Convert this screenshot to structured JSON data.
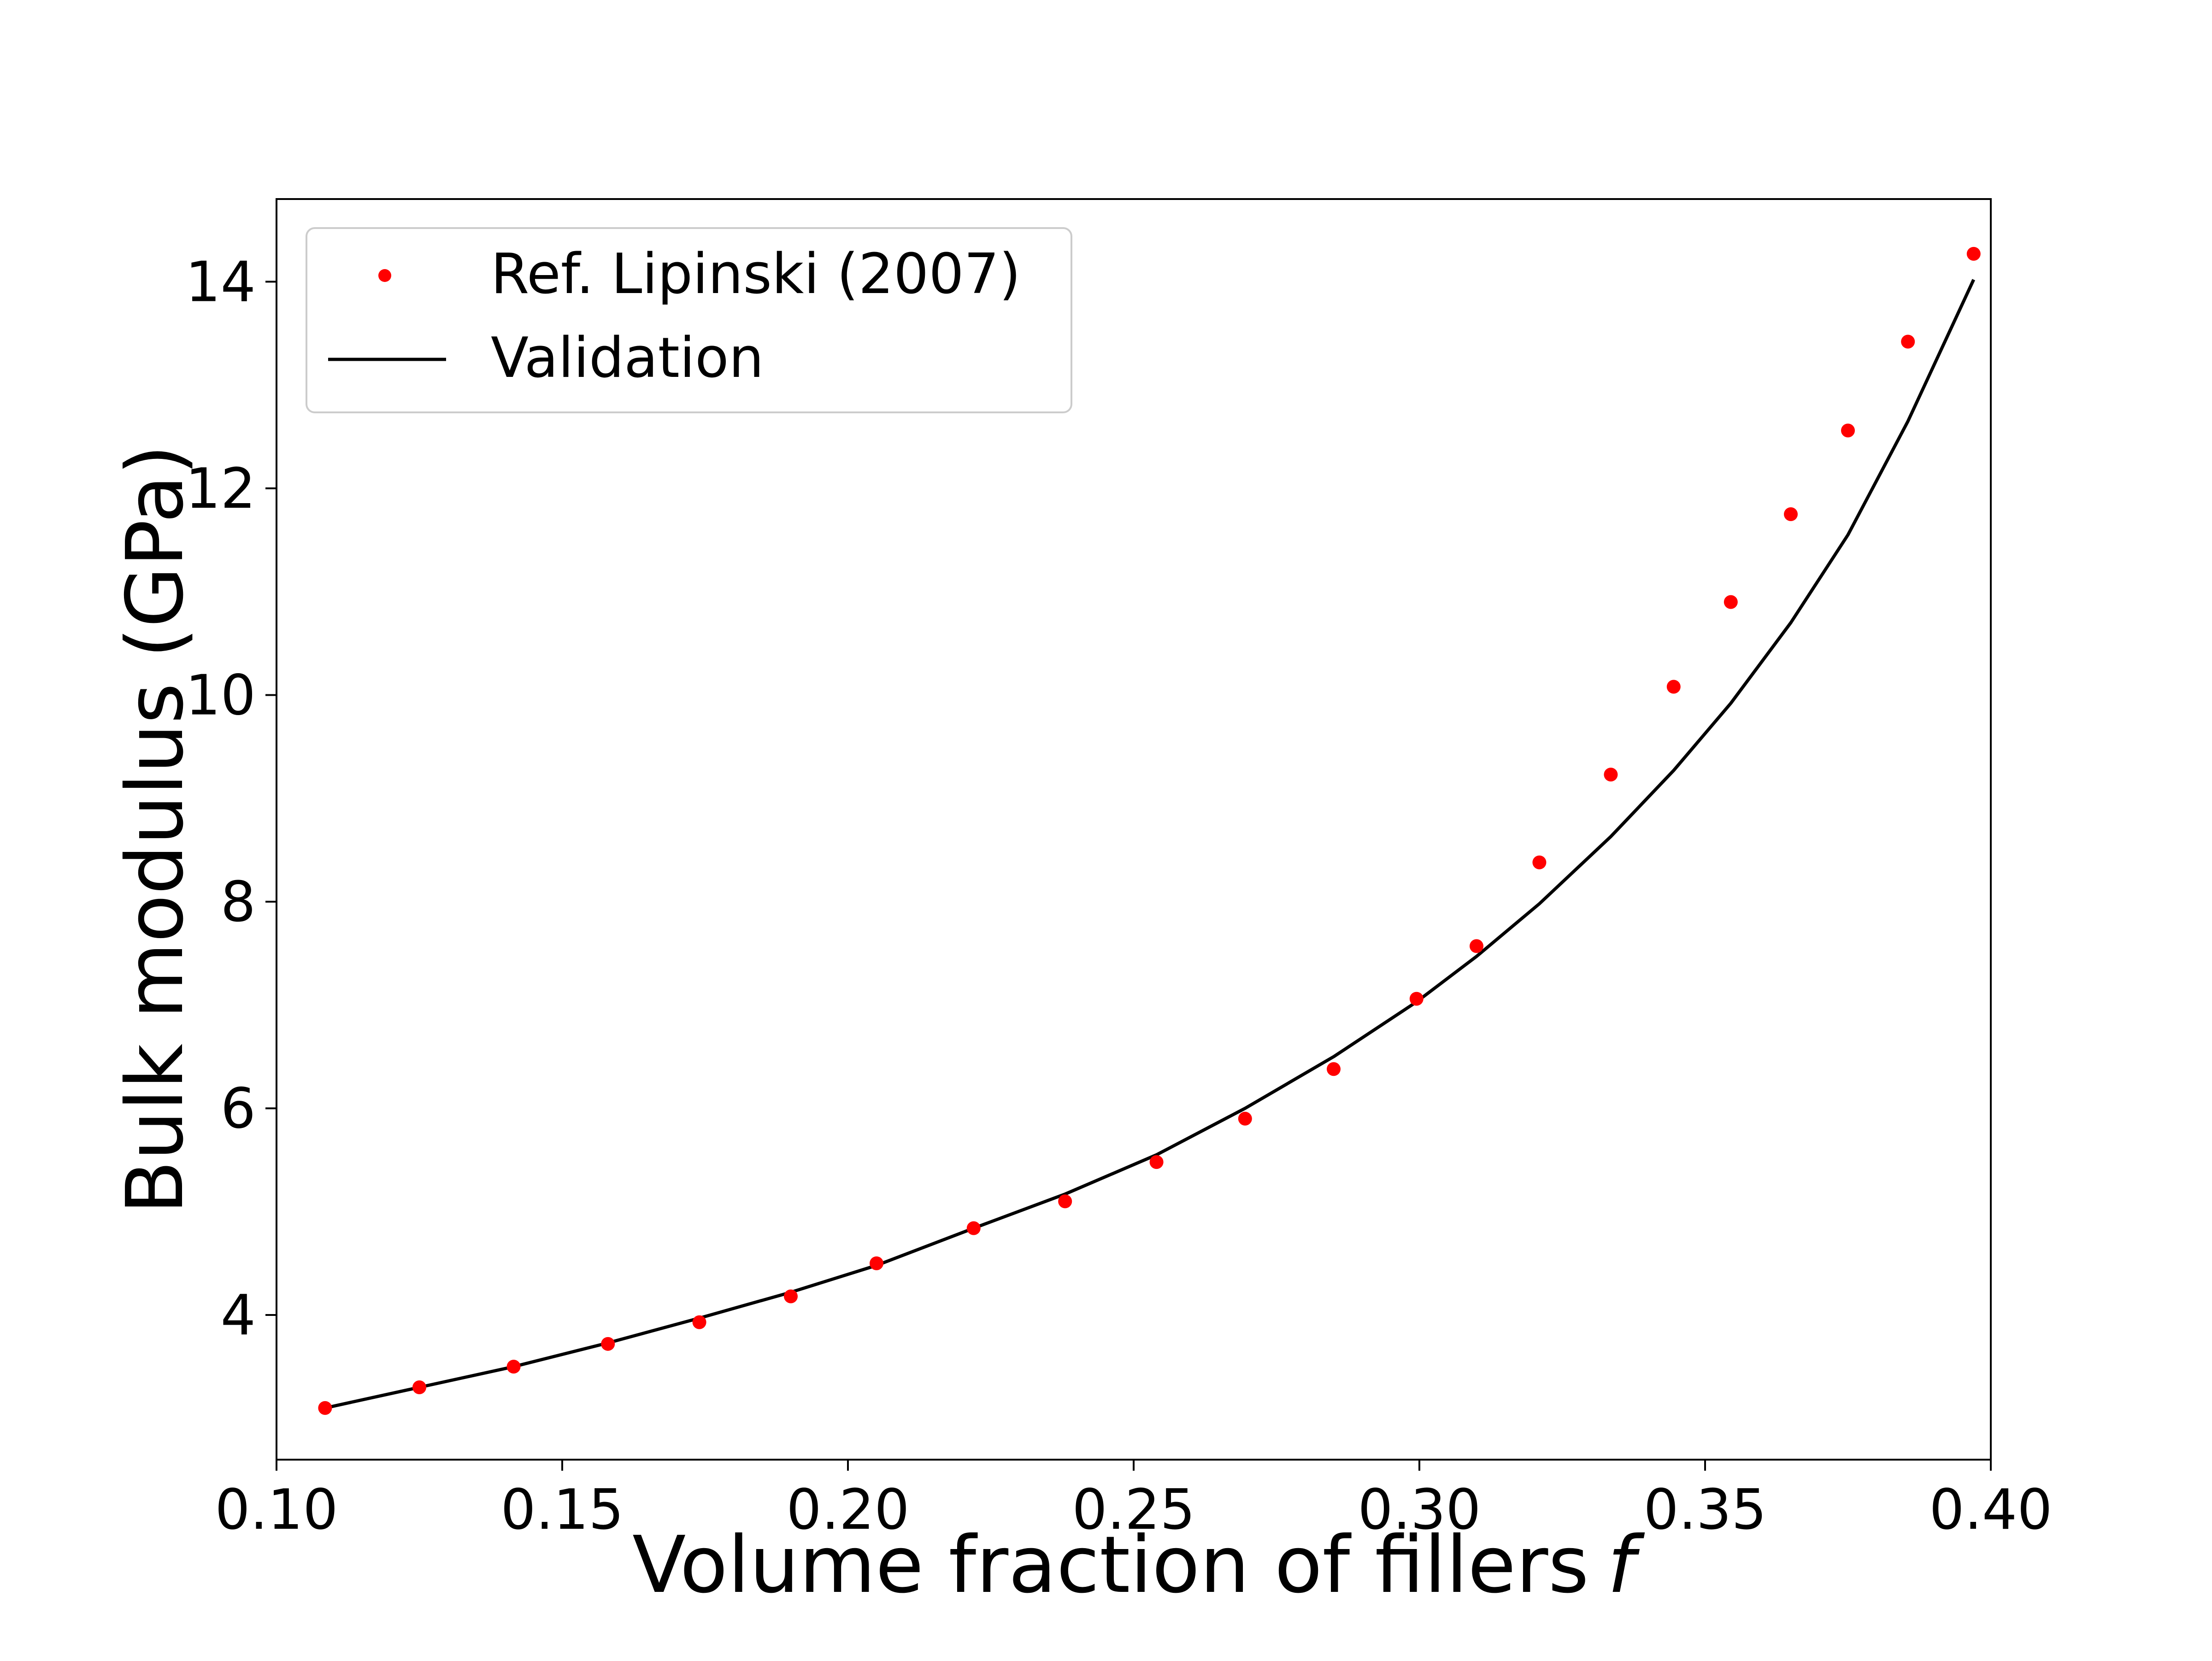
{
  "chart_data": {
    "type": "line",
    "title": "",
    "xlabel": "Volume fraction of fillers",
    "xlabel_italic": "f",
    "ylabel": "Bulk modulus (GPa)",
    "xlim": [
      0.1,
      0.4
    ],
    "ylim": [
      2.6,
      14.8
    ],
    "xticks": [
      "0.10",
      "0.15",
      "0.20",
      "0.25",
      "0.30",
      "0.35",
      "0.40"
    ],
    "yticks": [
      "4",
      "6",
      "8",
      "10",
      "12",
      "14"
    ],
    "grid": false,
    "legend_position": "top-left",
    "series": [
      {
        "name": "Ref. Lipinski (2007)",
        "style": "markers",
        "color": "#ff0000",
        "x": [
          0.1085,
          0.125,
          0.1415,
          0.158,
          0.174,
          0.19,
          0.205,
          0.222,
          0.238,
          0.254,
          0.2695,
          0.285,
          0.2995,
          0.31,
          0.321,
          0.3335,
          0.3445,
          0.3545,
          0.365,
          0.375,
          0.3855,
          0.397
        ],
        "y": [
          3.1,
          3.3,
          3.5,
          3.72,
          3.93,
          4.18,
          4.5,
          4.84,
          5.1,
          5.48,
          5.9,
          6.38,
          7.06,
          7.57,
          8.38,
          9.23,
          10.08,
          10.9,
          11.75,
          12.56,
          13.42,
          14.27
        ]
      },
      {
        "name": "Validation",
        "style": "line",
        "color": "#000000",
        "x": [
          0.1085,
          0.125,
          0.1415,
          0.158,
          0.174,
          0.19,
          0.205,
          0.222,
          0.238,
          0.254,
          0.2695,
          0.285,
          0.2995,
          0.31,
          0.321,
          0.3335,
          0.3445,
          0.3545,
          0.365,
          0.375,
          0.3855,
          0.397
        ],
        "y": [
          3.1,
          3.3,
          3.5,
          3.73,
          3.97,
          4.22,
          4.48,
          4.84,
          5.17,
          5.55,
          6.0,
          6.5,
          7.03,
          7.47,
          7.98,
          8.63,
          9.27,
          9.92,
          10.7,
          11.55,
          12.65,
          14.02
        ]
      }
    ]
  }
}
